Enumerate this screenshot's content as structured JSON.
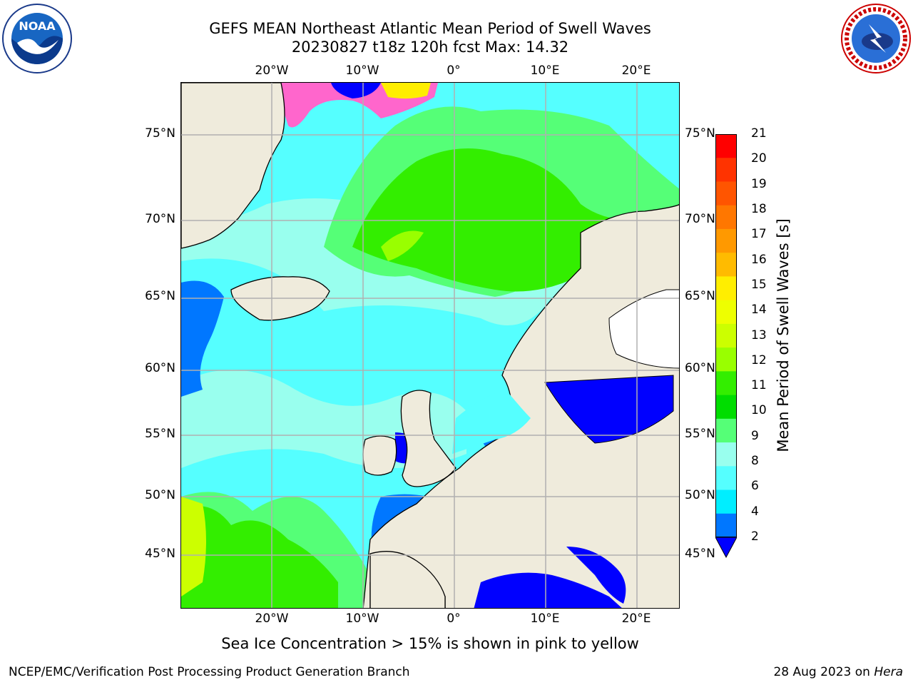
{
  "title": {
    "line1": "GEFS MEAN Northeast Atlantic Mean Period of Swell Waves",
    "line2": "20230827 t18z 120h fcst   Max: 14.32"
  },
  "logos": {
    "left": {
      "icon": "noaa-logo",
      "text": "NOAA",
      "ring_text": "NATIONAL OCEANIC AND ATMOSPHERIC ADMINISTRATION · U.S. DEPARTMENT OF COMMERCE"
    },
    "right": {
      "icon": "nws-logo",
      "ring_text": "NATIONAL WEATHER SERVICE"
    }
  },
  "map": {
    "lon_labels": [
      "20°W",
      "10°W",
      "0°",
      "10°E",
      "20°E"
    ],
    "lat_labels": [
      "75°N",
      "70°N",
      "65°N",
      "60°N",
      "55°N",
      "50°N",
      "45°N"
    ],
    "land_color": "#efebdc",
    "grid_color": "#b0b0b0"
  },
  "colorbar": {
    "label": "Mean Period of Swell Waves [s]",
    "ticks": [
      "21",
      "20",
      "19",
      "18",
      "17",
      "16",
      "15",
      "14",
      "13",
      "12",
      "11",
      "10",
      "9",
      "8",
      "6",
      "4",
      "2"
    ],
    "colors_top_to_bottom": [
      "#ff0000",
      "#ff3300",
      "#ff5500",
      "#ff7700",
      "#ff9900",
      "#ffbb00",
      "#ffee00",
      "#eeff00",
      "#ccff00",
      "#99ff00",
      "#33ee00",
      "#00dd00",
      "#55ff77",
      "#99ffee",
      "#55ffff",
      "#00eeff",
      "#0077ff"
    ],
    "extend_color": "#0000ff"
  },
  "footer": {
    "note": "Sea Ice Concentration > 15% is shown in pink to yellow",
    "credit": "NCEP/EMC/Verification Post Processing Product Generation Branch",
    "date": "28 Aug 2023 on ",
    "machine": "Hera"
  }
}
